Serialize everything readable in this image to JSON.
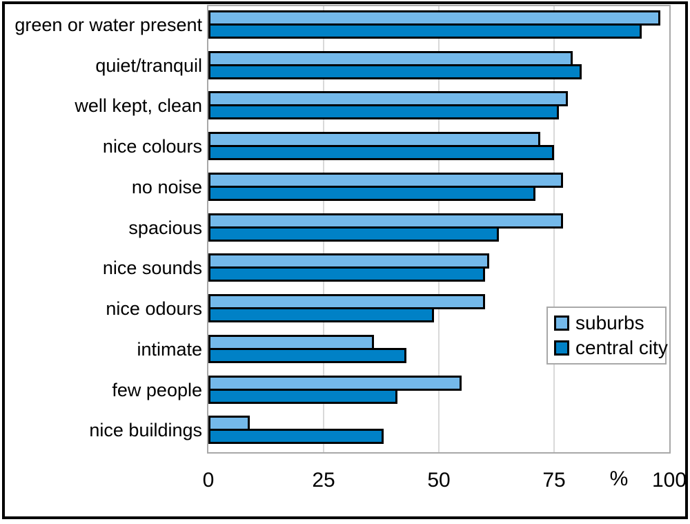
{
  "chart_data": {
    "type": "bar",
    "orientation": "horizontal",
    "title": "",
    "xlabel": "%",
    "ylabel": "",
    "xlim": [
      0,
      100
    ],
    "xticks": [
      0,
      25,
      50,
      75,
      100
    ],
    "grid": "vertical-light-gray",
    "legend_position": "middle-right",
    "categories": [
      "green or water present",
      "quiet/tranquil",
      "well kept, clean",
      "nice colours",
      "no noise",
      "spacious",
      "nice sounds",
      "nice odours",
      "intimate",
      "few people",
      "nice buildings"
    ],
    "series": [
      {
        "name": "suburbs",
        "color": "#74B9EA",
        "values": [
          98,
          79,
          78,
          72,
          77,
          77,
          61,
          60,
          36,
          55,
          9
        ]
      },
      {
        "name": "central city",
        "color": "#0081C6",
        "values": [
          94,
          81,
          76,
          75,
          71,
          63,
          60,
          49,
          43,
          41,
          38
        ]
      }
    ]
  },
  "axis": {
    "unit_label": "%"
  },
  "colors": {
    "bar_border": "#000000",
    "gridline": "#d9d9d9",
    "plot_border": "#a8a8a8",
    "outer_frame": "#000000",
    "background": "#ffffff"
  }
}
